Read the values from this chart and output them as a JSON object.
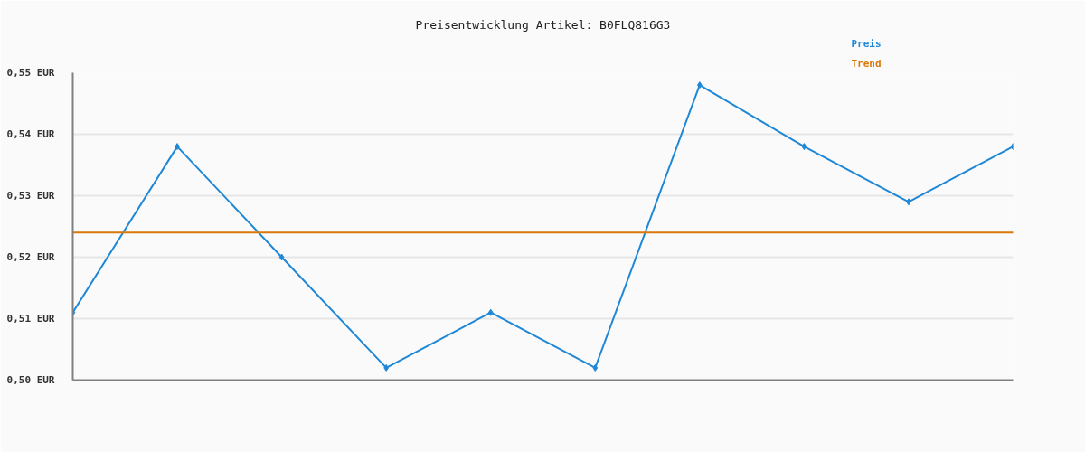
{
  "chart_data": {
    "type": "line",
    "title": "Preisentwicklung Artikel: B0FLQ816G3",
    "categories": [
      null,
      null,
      null,
      null,
      null,
      null,
      null,
      null,
      null,
      null
    ],
    "series": [
      {
        "name": "Preis",
        "color": "#1f88d6",
        "marker": "diamond",
        "values": [
          0.511,
          0.538,
          0.52,
          0.502,
          0.511,
          0.502,
          0.548,
          0.538,
          0.529,
          0.538
        ]
      },
      {
        "name": "Trend",
        "color": "#d9790b",
        "type": "line",
        "values": [
          0.524,
          0.524,
          0.524,
          0.524,
          0.524,
          0.524,
          0.524,
          0.524,
          0.524,
          0.524
        ]
      }
    ],
    "ylim": [
      0.5,
      0.55
    ],
    "yticks": [
      {
        "value": 0.5,
        "label": "0,50 EUR"
      },
      {
        "value": 0.51,
        "label": "0,51 EUR"
      },
      {
        "value": 0.52,
        "label": "0,52 EUR"
      },
      {
        "value": 0.53,
        "label": "0,53 EUR"
      },
      {
        "value": 0.54,
        "label": "0,54 EUR"
      },
      {
        "value": 0.55,
        "label": "0,55 EUR"
      }
    ],
    "grid": "y"
  }
}
